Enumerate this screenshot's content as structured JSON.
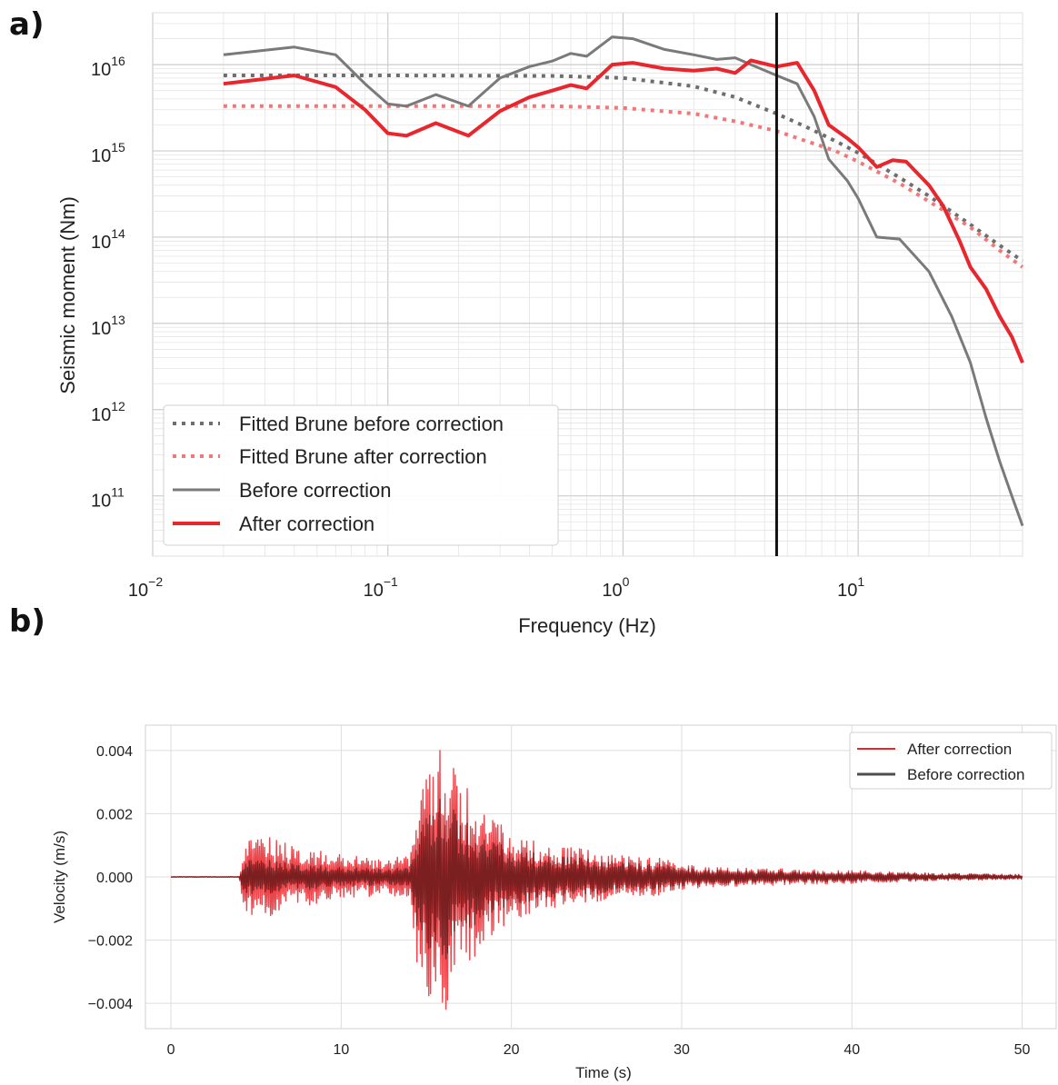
{
  "panels": {
    "a": "a)",
    "b": "b)"
  },
  "chart_data": [
    {
      "type": "line",
      "panel": "a)",
      "xlabel": "Frequency (Hz)",
      "ylabel": "Seismic moment (Nm)",
      "xscale": "log",
      "yscale": "log",
      "xlim": [
        0.01,
        50
      ],
      "ylim": [
        20000000000.0,
        4e+16
      ],
      "xticks": [
        {
          "value": 0.01,
          "base": "10",
          "exp": "−2"
        },
        {
          "value": 0.1,
          "base": "10",
          "exp": "−1"
        },
        {
          "value": 1,
          "base": "10",
          "exp": "0"
        },
        {
          "value": 10,
          "base": "10",
          "exp": "1"
        }
      ],
      "yticks": [
        {
          "value": 100000000000.0,
          "base": "10",
          "exp": "11"
        },
        {
          "value": 1000000000000.0,
          "base": "10",
          "exp": "12"
        },
        {
          "value": 10000000000000.0,
          "base": "10",
          "exp": "13"
        },
        {
          "value": 100000000000000.0,
          "base": "10",
          "exp": "14"
        },
        {
          "value": 1000000000000000.0,
          "base": "10",
          "exp": "15"
        },
        {
          "value": 1e+16,
          "base": "10",
          "exp": "16"
        }
      ],
      "grid": true,
      "vline_x": 4.5,
      "legend_position": "lower-left",
      "series": [
        {
          "name": "Fitted Brune before correction",
          "style": "dotted",
          "color": "#6e6e6e",
          "x": [
            0.02,
            0.1,
            0.5,
            1,
            2,
            3,
            4.5,
            6,
            8,
            10,
            15,
            20,
            30,
            40,
            50
          ],
          "y": [
            7500000000000000.0,
            7500000000000000.0,
            7400000000000000.0,
            7000000000000000.0,
            5600000000000000.0,
            4200000000000000.0,
            2700000000000000.0,
            1900000000000000.0,
            1300000000000000.0,
            950000000000000.0,
            490000000000000.0,
            300000000000000.0,
            140000000000000.0,
            80000000000000.0,
            53000000000000.0
          ]
        },
        {
          "name": "Fitted Brune after correction",
          "style": "dotted",
          "color": "#f07878",
          "x": [
            0.02,
            0.1,
            0.5,
            1,
            2,
            3,
            4.5,
            6,
            8,
            10,
            15,
            20,
            30,
            40,
            50
          ],
          "y": [
            3300000000000000.0,
            3300000000000000.0,
            3300000000000000.0,
            3150000000000000.0,
            2700000000000000.0,
            2200000000000000.0,
            1700000000000000.0,
            1300000000000000.0,
            1000000000000000.0,
            750000000000000.0,
            420000000000000.0,
            260000000000000.0,
            130000000000000.0,
            70000000000000.0,
            45000000000000.0
          ]
        },
        {
          "name": "Before correction",
          "style": "solid",
          "color": "#7a7a7a",
          "x": [
            0.02,
            0.04,
            0.06,
            0.08,
            0.1,
            0.12,
            0.16,
            0.22,
            0.3,
            0.4,
            0.5,
            0.6,
            0.7,
            0.9,
            1.1,
            1.5,
            2,
            2.5,
            3,
            3.5,
            4.5,
            5.5,
            6.5,
            7.5,
            9,
            10,
            12,
            15,
            20,
            25,
            30,
            35,
            40,
            45,
            50
          ],
          "y": [
            1.3e+16,
            1.6e+16,
            1.3e+16,
            6000000000000000.0,
            3500000000000000.0,
            3300000000000000.0,
            4500000000000000.0,
            3300000000000000.0,
            7000000000000000.0,
            9500000000000000.0,
            1.1e+16,
            1.35e+16,
            1.25e+16,
            2.1e+16,
            2e+16,
            1.5e+16,
            1.3e+16,
            1.15e+16,
            1.2e+16,
            1e+16,
            7500000000000000.0,
            6000000000000000.0,
            2500000000000000.0,
            800000000000000.0,
            450000000000000.0,
            280000000000000.0,
            100000000000000.0,
            95000000000000.0,
            40000000000000.0,
            12000000000000.0,
            3500000000000.0,
            800000000000.0,
            250000000000.0,
            100000000000.0,
            45000000000.0
          ]
        },
        {
          "name": "After correction",
          "style": "solid",
          "color": "#e8262d",
          "x": [
            0.02,
            0.04,
            0.06,
            0.08,
            0.1,
            0.12,
            0.16,
            0.22,
            0.3,
            0.4,
            0.5,
            0.6,
            0.7,
            0.9,
            1.1,
            1.5,
            2,
            2.5,
            3,
            3.5,
            4.5,
            5.5,
            6.5,
            7.5,
            9,
            10,
            12,
            14,
            16,
            20,
            23,
            27,
            30,
            35,
            40,
            45,
            50
          ],
          "y": [
            6000000000000000.0,
            7500000000000000.0,
            5500000000000000.0,
            3000000000000000.0,
            1600000000000000.0,
            1500000000000000.0,
            2100000000000000.0,
            1500000000000000.0,
            2900000000000000.0,
            4200000000000000.0,
            5000000000000000.0,
            5800000000000000.0,
            5300000000000000.0,
            1e+16,
            1.05e+16,
            9000000000000000.0,
            8500000000000000.0,
            9000000000000000.0,
            8000000000000000.0,
            1.12e+16,
            9500000000000000.0,
            1.05e+16,
            5000000000000000.0,
            2000000000000000.0,
            1400000000000000.0,
            1100000000000000.0,
            650000000000000.0,
            780000000000000.0,
            750000000000000.0,
            400000000000000.0,
            230000000000000.0,
            90000000000000.0,
            45000000000000.0,
            25000000000000.0,
            12000000000000.0,
            7000000000000.0,
            3500000000000.0
          ]
        }
      ]
    },
    {
      "type": "line",
      "panel": "b)",
      "xlabel": "Time (s)",
      "ylabel": "Velocity (m/s)",
      "xlim": [
        -1.5,
        52
      ],
      "ylim": [
        -0.0048,
        0.0048
      ],
      "xticks": [
        "0",
        "10",
        "20",
        "30",
        "40",
        "50"
      ],
      "xtick_values": [
        0,
        10,
        20,
        30,
        40,
        50
      ],
      "yticks": [
        "0.004",
        "0.002",
        "0.000",
        "−0.002",
        "−0.004"
      ],
      "ytick_values": [
        0.004,
        0.002,
        0,
        -0.002,
        -0.004
      ],
      "grid": true,
      "legend_position": "upper-right",
      "sample_interval_s": 0.05,
      "series": [
        {
          "name": "After correction",
          "color": "#e8262d",
          "amplitude_envelope": {
            "t": [
              0,
              4.0,
              4.2,
              4.5,
              5.0,
              6.0,
              8.0,
              10,
              12,
              14.0,
              14.4,
              15.0,
              15.6,
              16.2,
              16.8,
              17.5,
              18.5,
              20,
              22,
              24,
              26,
              28,
              29,
              30,
              33,
              36,
              40,
              45,
              50
            ],
            "amp": [
              1e-05,
              1e-05,
              0.0008,
              0.0013,
              0.0014,
              0.0012,
              0.0009,
              0.0007,
              0.0006,
              0.0007,
              0.0028,
              0.004,
              0.0044,
              0.0042,
              0.0034,
              0.0028,
              0.002,
              0.0014,
              0.001,
              0.0009,
              0.0007,
              0.0006,
              0.0006,
              0.0004,
              0.0003,
              0.00025,
              0.0002,
              0.00012,
              8e-05
            ]
          }
        },
        {
          "name": "Before correction",
          "color": "#4d4d4d",
          "amplitude_envelope": {
            "t": [
              0,
              4.0,
              4.2,
              4.5,
              5.0,
              6.0,
              8.0,
              10,
              12,
              14.0,
              14.4,
              15.0,
              15.6,
              16.2,
              16.8,
              17.5,
              18.5,
              20,
              22,
              24,
              26,
              28,
              29,
              30,
              33,
              36,
              40,
              45,
              50
            ],
            "amp": [
              1e-05,
              1e-05,
              0.0004,
              0.0006,
              0.0006,
              0.0005,
              0.0004,
              0.0003,
              0.00028,
              0.0003,
              0.0016,
              0.0024,
              0.0027,
              0.0026,
              0.0021,
              0.0017,
              0.0012,
              0.0009,
              0.0007,
              0.0006,
              0.0005,
              0.0004,
              0.0004,
              0.0003,
              0.00022,
              0.00018,
              0.00014,
              0.0001,
              6e-05
            ]
          }
        }
      ]
    }
  ]
}
